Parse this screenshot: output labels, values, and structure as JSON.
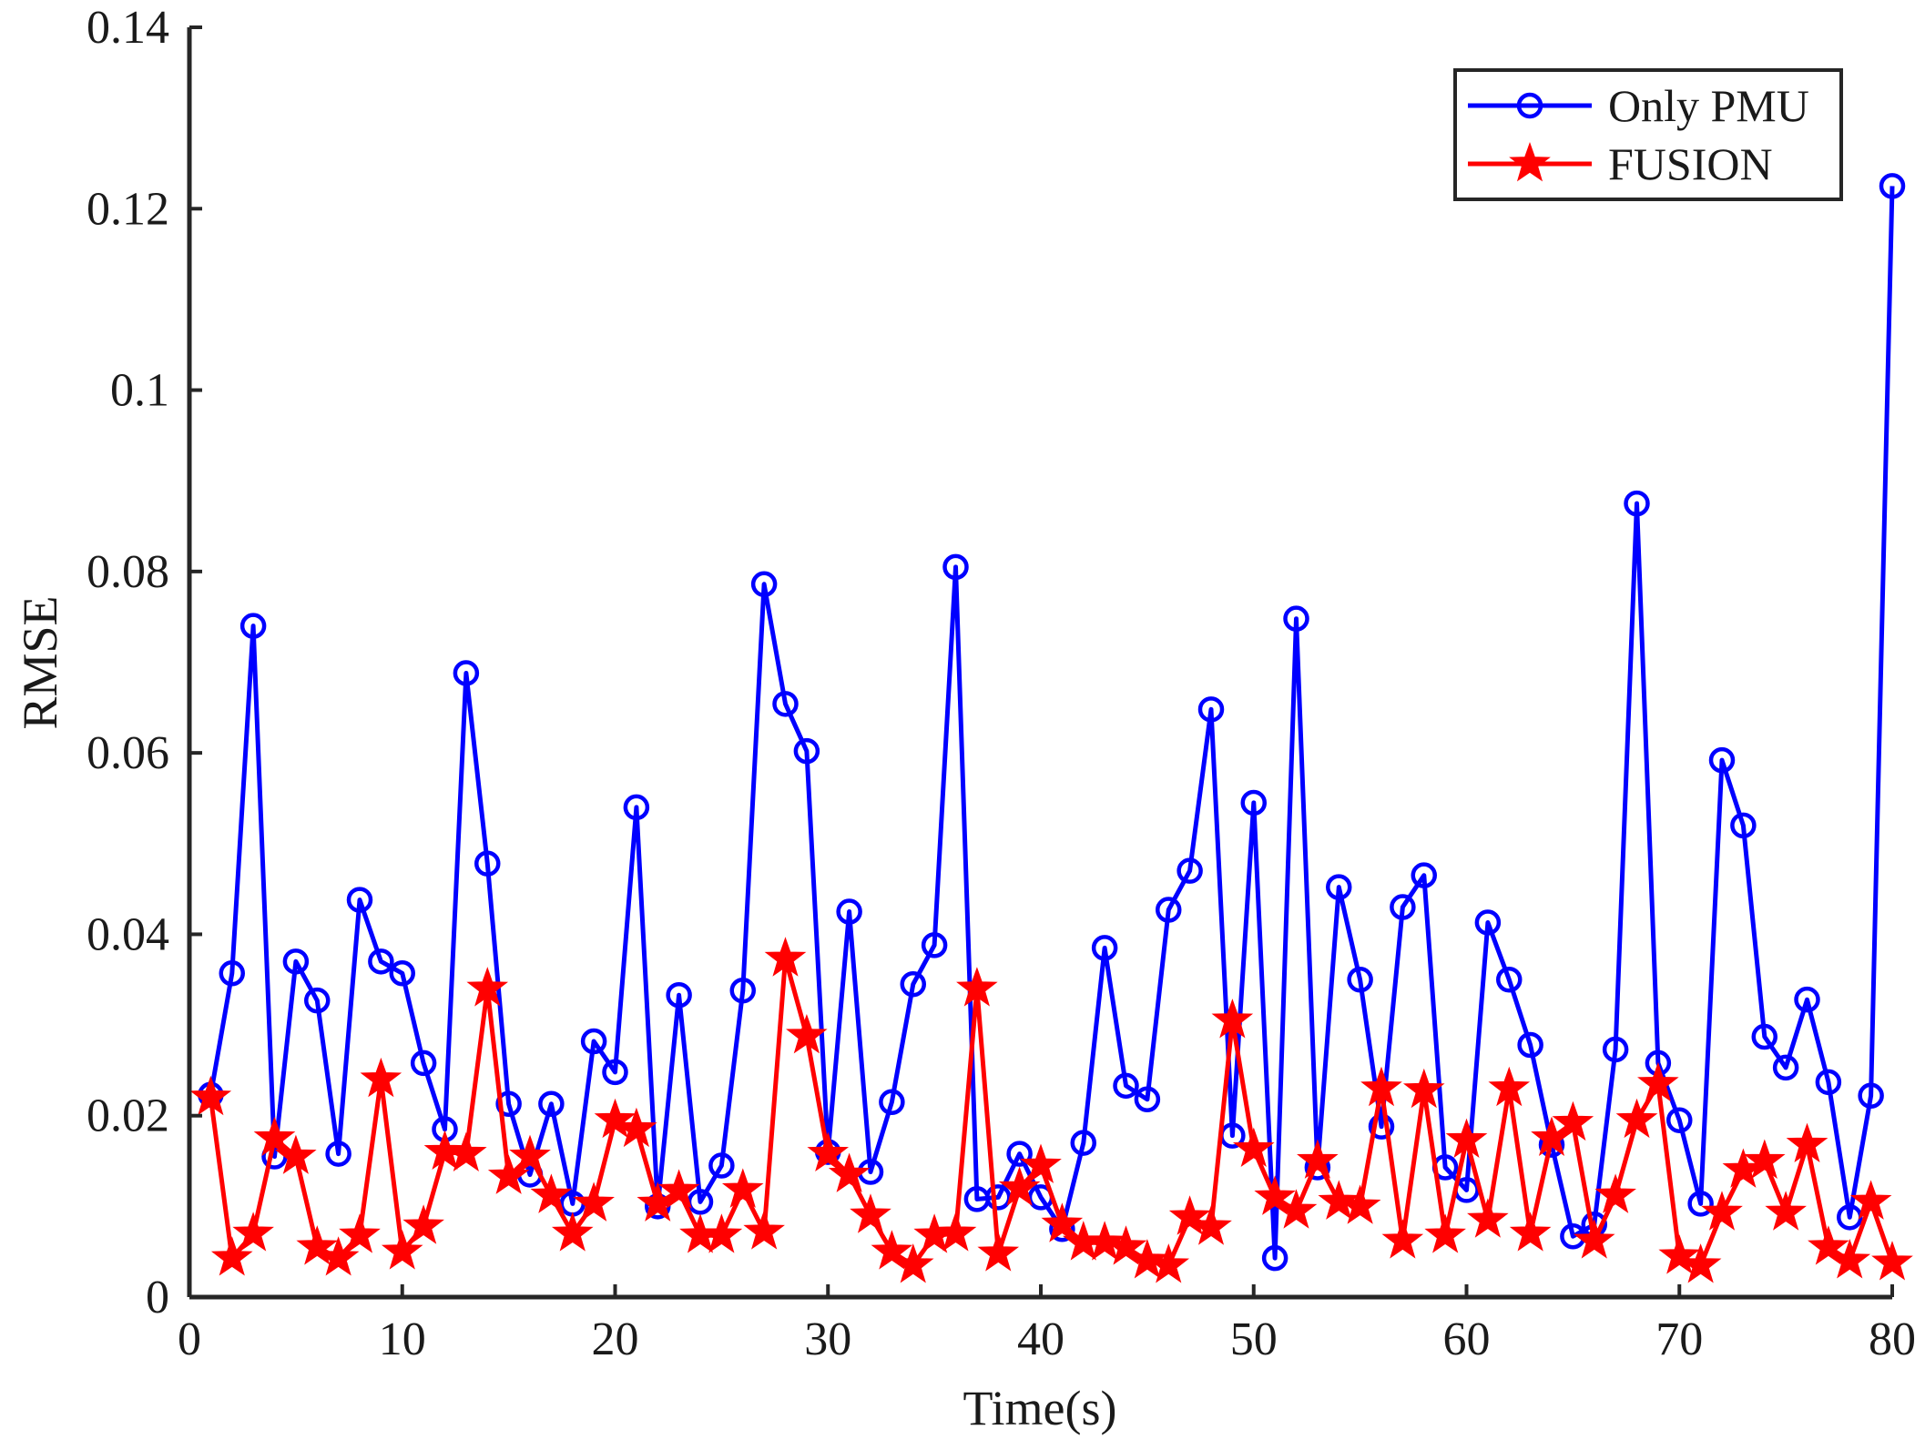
{
  "chart_data": {
    "type": "line",
    "title": "",
    "xlabel": "Time(s)",
    "ylabel": "RMSE",
    "xlim": [
      0,
      80
    ],
    "ylim": [
      0,
      0.14
    ],
    "xticks": [
      0,
      10,
      20,
      30,
      40,
      50,
      60,
      70,
      80
    ],
    "yticks": [
      0,
      0.02,
      0.04,
      0.06,
      0.08,
      0.1,
      0.12,
      0.14
    ],
    "xtick_labels": [
      "0",
      "10",
      "20",
      "30",
      "40",
      "50",
      "60",
      "70",
      "80"
    ],
    "ytick_labels": [
      "0",
      "0.02",
      "0.04",
      "0.06",
      "0.08",
      "0.1",
      "0.12",
      "0.14"
    ],
    "legend_position": "top-right",
    "grid": false,
    "x": [
      1,
      2,
      3,
      4,
      5,
      6,
      7,
      8,
      9,
      10,
      11,
      12,
      13,
      14,
      15,
      16,
      17,
      18,
      19,
      20,
      21,
      22,
      23,
      24,
      25,
      26,
      27,
      28,
      29,
      30,
      31,
      32,
      33,
      34,
      35,
      36,
      37,
      38,
      39,
      40,
      41,
      42,
      43,
      44,
      45,
      46,
      47,
      48,
      49,
      50,
      51,
      52,
      53,
      54,
      55,
      56,
      57,
      58,
      59,
      60,
      61,
      62,
      63,
      64,
      65,
      66,
      67,
      68,
      69,
      70,
      71,
      72,
      73,
      74,
      75,
      76,
      77,
      78,
      79,
      80
    ],
    "series": [
      {
        "name": "Only PMU",
        "color": "#0000ff",
        "marker": "circle",
        "values": [
          0.0223,
          0.0357,
          0.074,
          0.0155,
          0.037,
          0.0327,
          0.0158,
          0.0438,
          0.037,
          0.0357,
          0.0258,
          0.0185,
          0.0688,
          0.0478,
          0.0213,
          0.0135,
          0.0213,
          0.0103,
          0.0282,
          0.0248,
          0.054,
          0.01,
          0.0333,
          0.0105,
          0.0145,
          0.0338,
          0.0786,
          0.0654,
          0.0602,
          0.016,
          0.0425,
          0.0138,
          0.0215,
          0.0345,
          0.0388,
          0.0805,
          0.0108,
          0.011,
          0.0158,
          0.011,
          0.0075,
          0.017,
          0.0385,
          0.0233,
          0.0218,
          0.0427,
          0.047,
          0.0648,
          0.0178,
          0.0545,
          0.0043,
          0.0748,
          0.0143,
          0.0452,
          0.035,
          0.0188,
          0.043,
          0.0465,
          0.0143,
          0.0118,
          0.0413,
          0.035,
          0.0278,
          0.0168,
          0.0067,
          0.008,
          0.0273,
          0.0875,
          0.0258,
          0.0195,
          0.0103,
          0.0592,
          0.052,
          0.0287,
          0.0253,
          0.0328,
          0.0237,
          0.0088,
          0.0222,
          0.1225
        ]
      },
      {
        "name": "FUSION",
        "color": "#ff0000",
        "marker": "star",
        "values": [
          0.022,
          0.0043,
          0.007,
          0.0175,
          0.0155,
          0.0055,
          0.0043,
          0.0068,
          0.024,
          0.005,
          0.0078,
          0.016,
          0.0158,
          0.034,
          0.0133,
          0.0155,
          0.0112,
          0.007,
          0.0103,
          0.0195,
          0.0185,
          0.0103,
          0.0117,
          0.0068,
          0.0068,
          0.0118,
          0.0072,
          0.0373,
          0.0288,
          0.0158,
          0.0135,
          0.009,
          0.005,
          0.0035,
          0.0068,
          0.007,
          0.034,
          0.0048,
          0.012,
          0.0145,
          0.008,
          0.006,
          0.006,
          0.0055,
          0.004,
          0.0035,
          0.0088,
          0.0077,
          0.0305,
          0.0163,
          0.011,
          0.0095,
          0.015,
          0.0105,
          0.01,
          0.023,
          0.0062,
          0.0228,
          0.0068,
          0.0173,
          0.0085,
          0.023,
          0.007,
          0.0175,
          0.0192,
          0.0062,
          0.0112,
          0.0195,
          0.0235,
          0.0045,
          0.0035,
          0.0093,
          0.014,
          0.015,
          0.0093,
          0.0168,
          0.0055,
          0.004,
          0.0105,
          0.0038
        ]
      }
    ]
  }
}
